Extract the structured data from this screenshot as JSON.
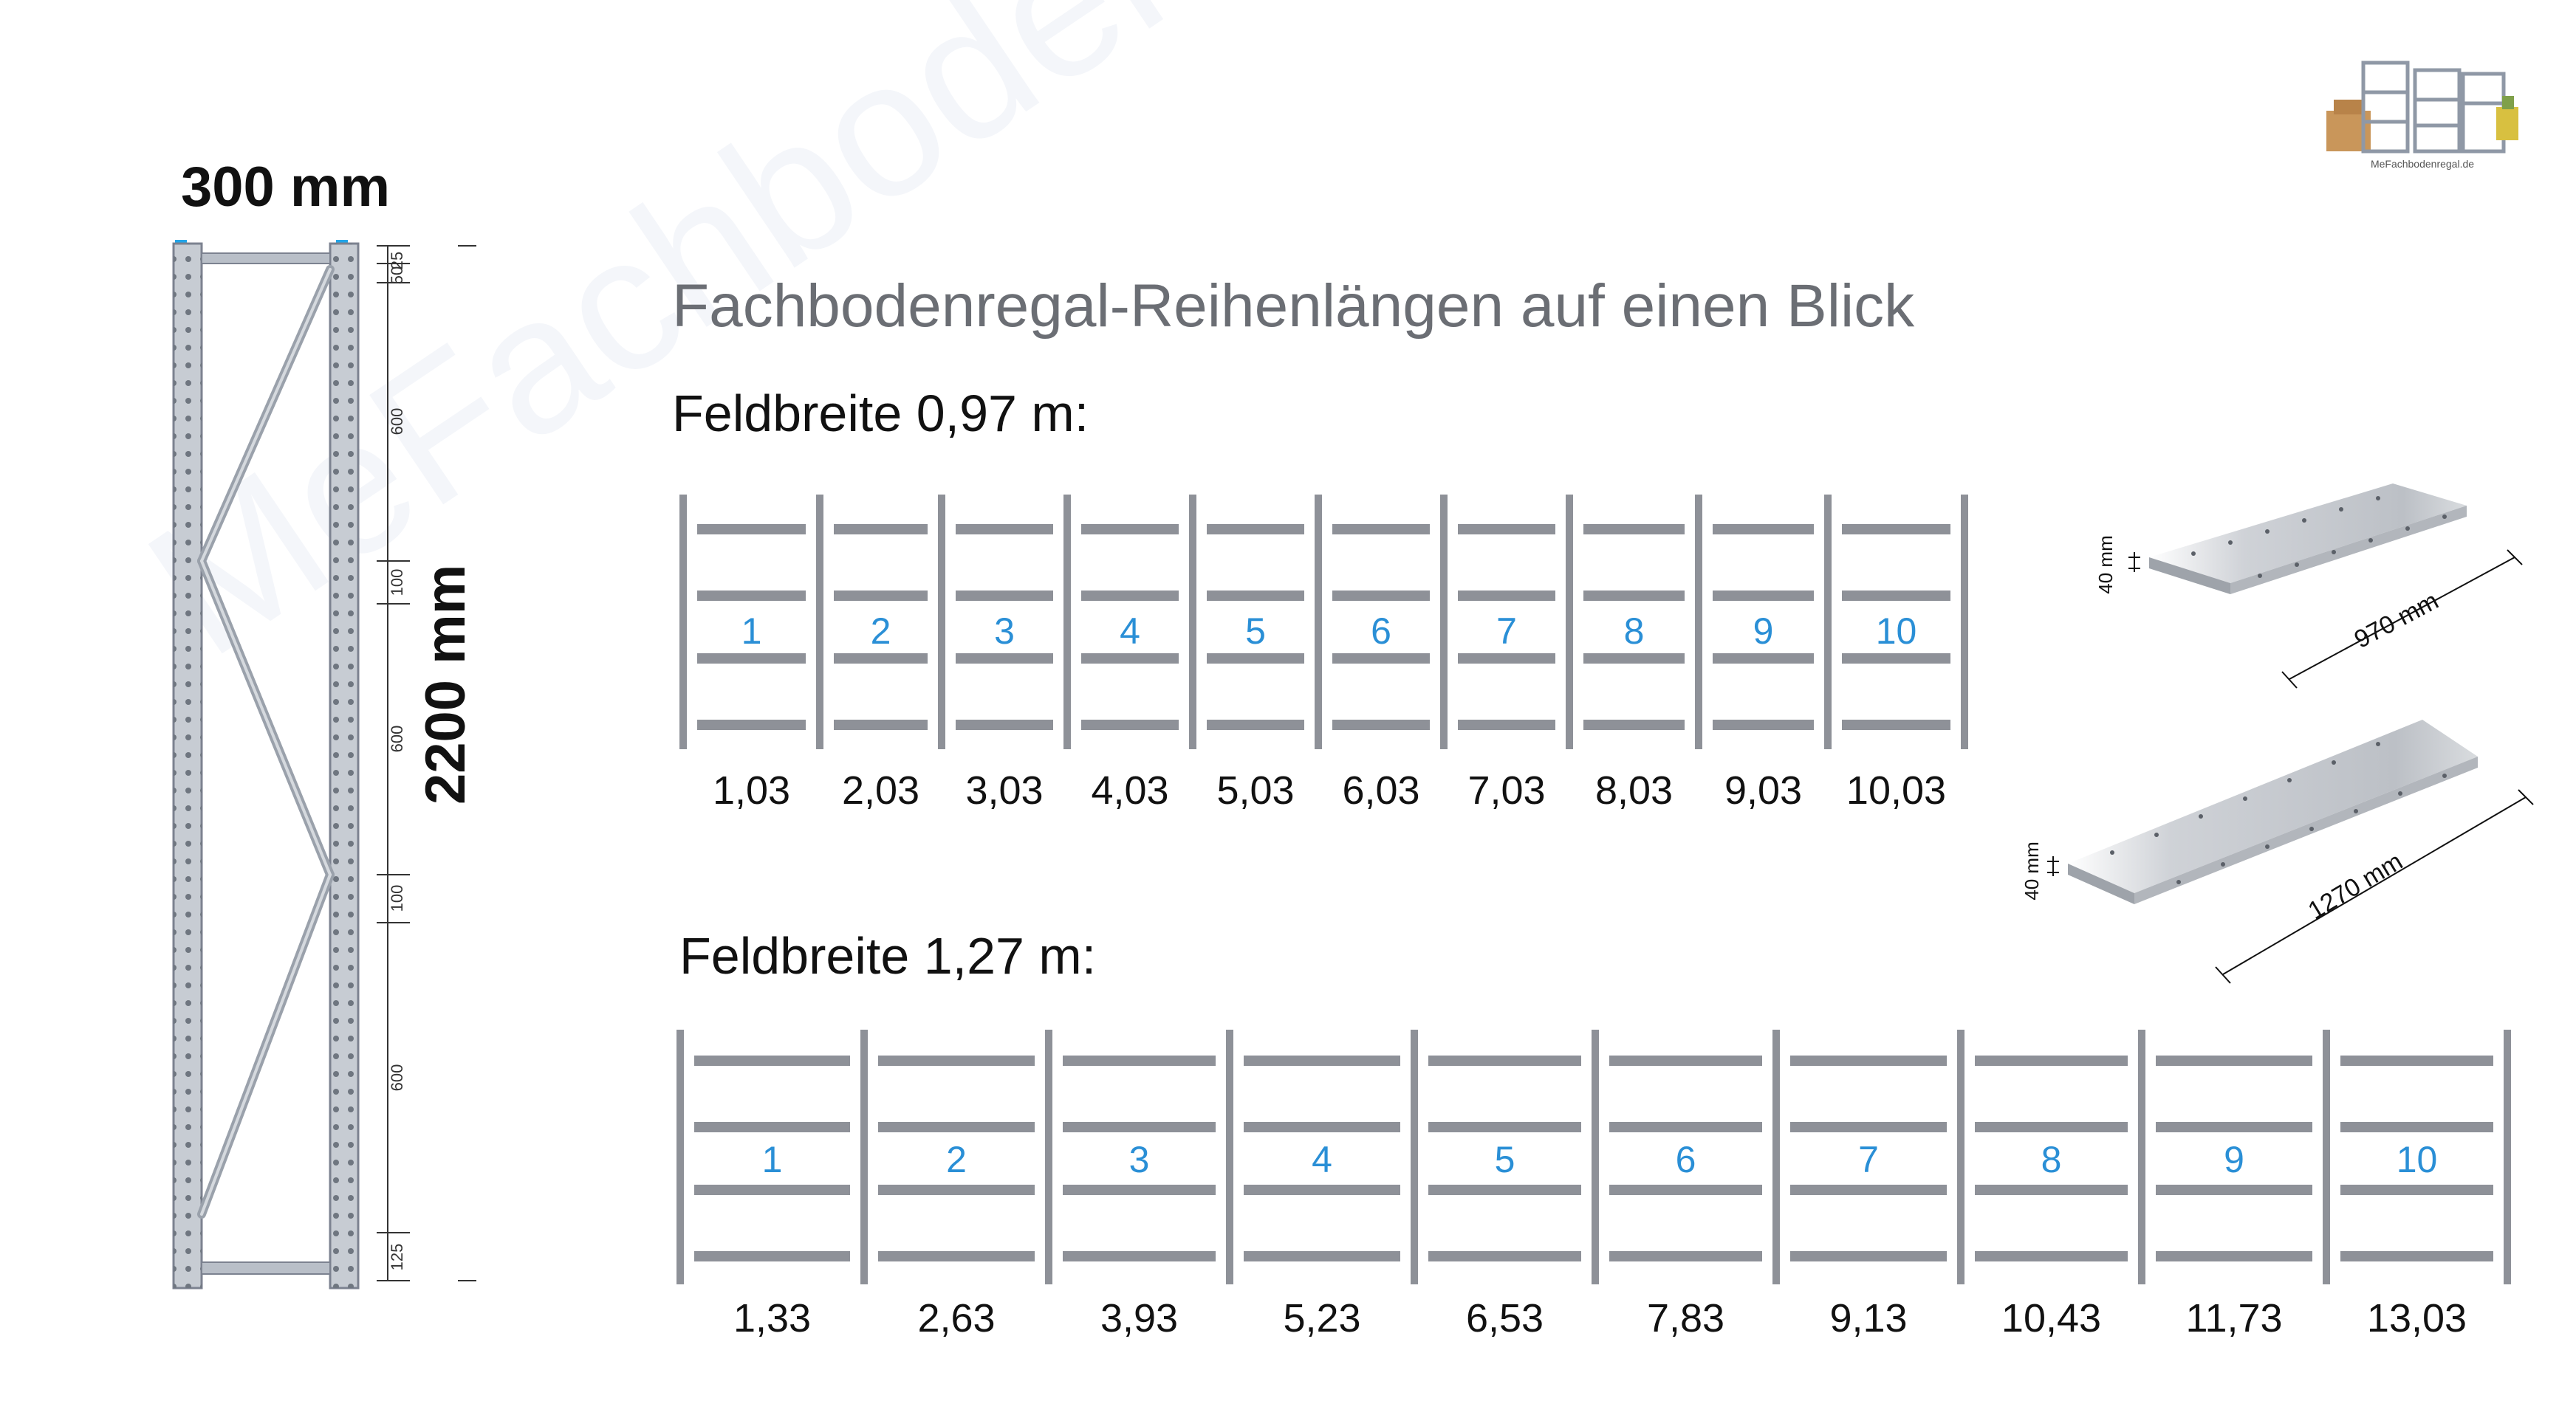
{
  "watermark": "MeFachbodenregal.de",
  "logo": {
    "text": "MeFachbodenregal.de"
  },
  "frame": {
    "width_label": "300 mm",
    "height_label": "2200 mm",
    "segments": [
      "25",
      "50",
      "600",
      "100",
      "600",
      "100",
      "600",
      "125"
    ]
  },
  "title": "Fachbodenregal-Reihenlängen auf einen Blick",
  "row1": {
    "heading": "Feldbreite 0,97 m:",
    "fields": [
      {
        "n": "1",
        "len": "1,03"
      },
      {
        "n": "2",
        "len": "2,03"
      },
      {
        "n": "3",
        "len": "3,03"
      },
      {
        "n": "4",
        "len": "4,03"
      },
      {
        "n": "5",
        "len": "5,03"
      },
      {
        "n": "6",
        "len": "6,03"
      },
      {
        "n": "7",
        "len": "7,03"
      },
      {
        "n": "8",
        "len": "8,03"
      },
      {
        "n": "9",
        "len": "9,03"
      },
      {
        "n": "10",
        "len": "10,03"
      }
    ]
  },
  "row2": {
    "heading": "Feldbreite 1,27 m:",
    "fields": [
      {
        "n": "1",
        "len": "1,33"
      },
      {
        "n": "2",
        "len": "2,63"
      },
      {
        "n": "3",
        "len": "3,93"
      },
      {
        "n": "4",
        "len": "5,23"
      },
      {
        "n": "5",
        "len": "6,53"
      },
      {
        "n": "6",
        "len": "7,83"
      },
      {
        "n": "7",
        "len": "9,13"
      },
      {
        "n": "8",
        "len": "10,43"
      },
      {
        "n": "9",
        "len": "11,73"
      },
      {
        "n": "10",
        "len": "13,03"
      }
    ]
  },
  "shelf1": {
    "thickness": "40 mm",
    "length": "970 mm"
  },
  "shelf2": {
    "thickness": "40 mm",
    "length": "1270 mm"
  },
  "colors": {
    "post": "#8e9198",
    "board": "#8e9198",
    "number": "#2a8fd6",
    "title": "#6b6e74"
  }
}
